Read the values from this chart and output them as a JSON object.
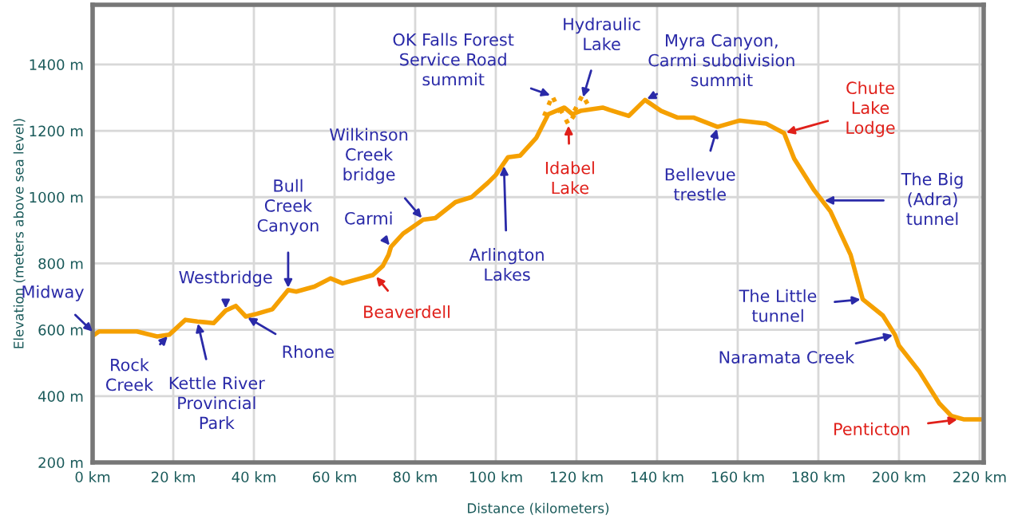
{
  "chart_data": {
    "type": "line",
    "xlabel": "Distance (kilometers)",
    "ylabel": "Elevation (meters above sea level)",
    "xlim": [
      0,
      221
    ],
    "ylim": [
      200,
      1580
    ],
    "xticks": [
      {
        "value": 0,
        "label": "0 km"
      },
      {
        "value": 20,
        "label": "20 km"
      },
      {
        "value": 40,
        "label": "40 km"
      },
      {
        "value": 60,
        "label": "60 km"
      },
      {
        "value": 80,
        "label": "80 km"
      },
      {
        "value": 100,
        "label": "100 km"
      },
      {
        "value": 120,
        "label": "120 km"
      },
      {
        "value": 140,
        "label": "140 km"
      },
      {
        "value": 160,
        "label": "160 km"
      },
      {
        "value": 180,
        "label": "180 km"
      },
      {
        "value": 200,
        "label": "200 km"
      },
      {
        "value": 220,
        "label": "220 km"
      }
    ],
    "yticks": [
      {
        "value": 200,
        "label": "200 m"
      },
      {
        "value": 400,
        "label": "400 m"
      },
      {
        "value": 600,
        "label": "600 m"
      },
      {
        "value": 800,
        "label": "800 m"
      },
      {
        "value": 1000,
        "label": "1000 m"
      },
      {
        "value": 1200,
        "label": "1200 m"
      },
      {
        "value": 1400,
        "label": "1400 m"
      }
    ],
    "grid": true,
    "legend": false,
    "marker": "none",
    "series": [
      {
        "color": "#f5a000",
        "line_style": "solid",
        "x": [
          0.4,
          1.6,
          11,
          16,
          19,
          23,
          26,
          30,
          33,
          35.5,
          38,
          40.7,
          44.6,
          48.5,
          50.5,
          55,
          59,
          62,
          69.5,
          72,
          73.4,
          74,
          77,
          82,
          85,
          90,
          94,
          98,
          100,
          103,
          106,
          110,
          113,
          117,
          119,
          121,
          126.5,
          129,
          133,
          137,
          141,
          145,
          149,
          155,
          160.5,
          167,
          171.5,
          174,
          179,
          183,
          188,
          191,
          196,
          199,
          200,
          205,
          210,
          213,
          216,
          220
        ],
        "values": [
          585,
          595,
          595,
          580,
          585,
          630,
          625,
          620,
          658,
          672,
          640,
          648,
          662,
          720,
          715,
          730,
          755,
          740,
          765,
          793,
          826,
          850,
          890,
          932,
          937,
          985,
          1000,
          1043,
          1067,
          1120,
          1125,
          1178,
          1250,
          1270,
          1250,
          1260,
          1270,
          1260,
          1245,
          1293,
          1260,
          1240,
          1240,
          1212,
          1231,
          1222,
          1193,
          1116,
          1020,
          957,
          826,
          692,
          643,
          585,
          552,
          475,
          378,
          340,
          330,
          330
        ]
      },
      {
        "color": "#f5a000",
        "line_style": "dotted",
        "x": [
          112,
          114,
          116,
          null,
          116,
          118,
          120,
          null,
          119.5,
          121.5,
          123.5
        ],
        "values": [
          1245,
          1305,
          1255,
          null,
          1265,
          1220,
          1258,
          null,
          1260,
          1308,
          1265
        ]
      }
    ],
    "annotations": [
      {
        "text": "Midway",
        "x": 0.4,
        "y": 590
      },
      {
        "text": "Rock\nCreek",
        "x": 19,
        "y": 585
      },
      {
        "text": "Kettle River\nProvincial\nPark",
        "x": 26,
        "y": 625
      },
      {
        "text": "Westbridge",
        "x": 33,
        "y": 658
      },
      {
        "text": "Rhone",
        "x": 38,
        "y": 640
      },
      {
        "text": "Bull\nCreek\nCanyon",
        "x": 48.5,
        "y": 720
      },
      {
        "text": "Beaverdell",
        "x": 70,
        "y": 765
      },
      {
        "text": "Carmi",
        "x": 74,
        "y": 850
      },
      {
        "text": "Wilkinson\nCreek\nbridge",
        "x": 82,
        "y": 932
      },
      {
        "text": "Arlington\nLakes",
        "x": 102,
        "y": 1100
      },
      {
        "text": "OK Falls Forest\nService Road\nsummit",
        "x": 114,
        "y": 1305
      },
      {
        "text": "Hydraulic\nLake",
        "x": 121.5,
        "y": 1295
      },
      {
        "text": "Idabel\nLake",
        "x": 118,
        "y": 1222
      },
      {
        "text": "Myra Canyon,\nCarmi subdivision\nsummit",
        "x": 137,
        "y": 1293
      },
      {
        "text": "Bellevue\ntrestle",
        "x": 155,
        "y": 1212
      },
      {
        "text": "Chute\nLake\nLodge",
        "x": 171.5,
        "y": 1193
      },
      {
        "text": "The Big\n(Adra)\ntunnel",
        "x": 181,
        "y": 990
      },
      {
        "text": "The Little\ntunnel",
        "x": 191,
        "y": 692
      },
      {
        "text": "Naramata Creek",
        "x": 199,
        "y": 585
      },
      {
        "text": "Penticton",
        "x": 215,
        "y": 330
      }
    ]
  }
}
